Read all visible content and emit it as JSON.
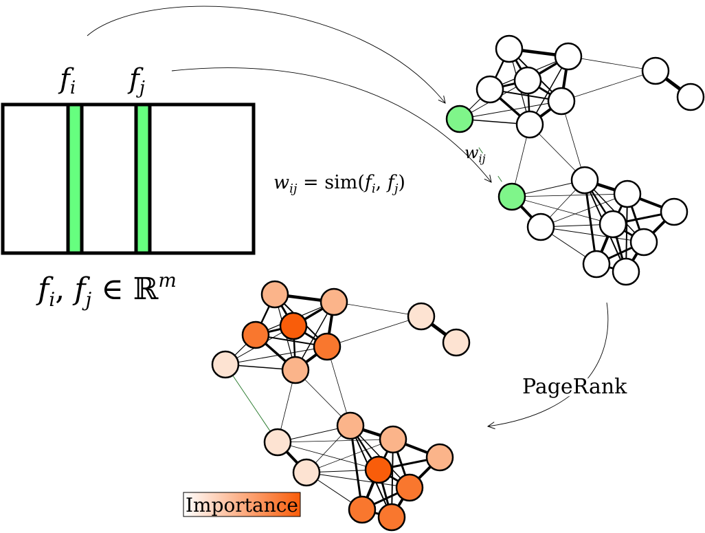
{
  "labels": {
    "fi": "f",
    "fi_sub": "i",
    "fj": "f",
    "fj_sub": "j",
    "set_expr": "f",
    "set_i": "i",
    "set_comma": ", ",
    "set_f2": "f",
    "set_j": "j",
    "set_in": " ∈ ℝ",
    "set_sup": "m",
    "weight_w": "w",
    "weight_sub": "ij",
    "weight_eq": " = sim(",
    "weight_f1": "f",
    "weight_i": "i",
    "weight_comma": ", ",
    "weight_f2": "f",
    "weight_j": "j",
    "weight_close": ")",
    "edge_w": "w",
    "edge_sub": "ij",
    "pagerank": "PageRank",
    "importance": "Importance"
  },
  "colors": {
    "feature_col": "#66ff7f",
    "selected_node": "#7ff58a",
    "edge_highlight": "#2e7d32",
    "imp_low": "#fde3d2",
    "imp_mid": "#fbb48a",
    "imp_high": "#f9772e",
    "imp_max": "#f95d0a"
  },
  "graph": {
    "nodes": [
      {
        "id": "a1",
        "importance": "mid"
      },
      {
        "id": "a2",
        "importance": "mid"
      },
      {
        "id": "a3",
        "importance": "high"
      },
      {
        "id": "a4",
        "importance": "max"
      },
      {
        "id": "a5",
        "importance": "high"
      },
      {
        "id": "a6",
        "importance": "low",
        "selected": true
      },
      {
        "id": "a7",
        "importance": "mid"
      },
      {
        "id": "b1",
        "importance": "low"
      },
      {
        "id": "b2",
        "importance": "low"
      },
      {
        "id": "c1",
        "importance": "low",
        "selected": true
      },
      {
        "id": "c2",
        "importance": "low"
      },
      {
        "id": "c3",
        "importance": "mid"
      },
      {
        "id": "c4",
        "importance": "mid"
      },
      {
        "id": "c5",
        "importance": "mid"
      },
      {
        "id": "c6",
        "importance": "max"
      },
      {
        "id": "c7",
        "importance": "high"
      },
      {
        "id": "c8",
        "importance": "high"
      },
      {
        "id": "c9",
        "importance": "high"
      },
      {
        "id": "c10",
        "importance": "high"
      }
    ]
  }
}
